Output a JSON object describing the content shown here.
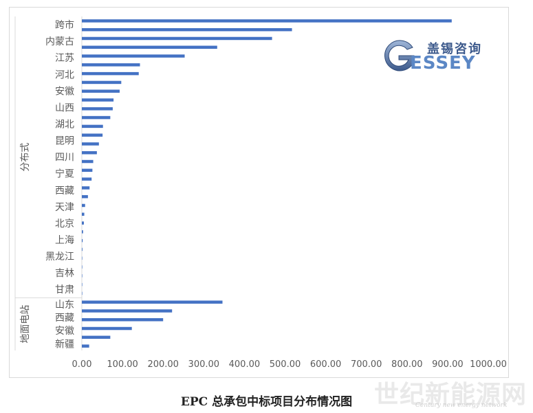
{
  "chart_data": {
    "type": "bar",
    "orientation": "horizontal",
    "title": "EPC 总承包中标项目分布情况图",
    "xlim": [
      0,
      1000
    ],
    "x_ticks": [
      "0.00",
      "100.00",
      "200.00",
      "300.00",
      "400.00",
      "500.00",
      "600.00",
      "700.00",
      "800.00",
      "900.00",
      "1000.00"
    ],
    "groups": [
      {
        "name": "分布式",
        "labeled_categories": [
          "跨市",
          "内蒙古",
          "江苏",
          "河北",
          "安徽",
          "山西",
          "湖北",
          "昆明",
          "四川",
          "宁夏",
          "西藏",
          "天津",
          "北京",
          "上海",
          "黑龙江",
          "吉林",
          "甘肃"
        ],
        "values": [
          910,
          517,
          468,
          333,
          253,
          143,
          140,
          97,
          93,
          78,
          76,
          70,
          52,
          51,
          42,
          37,
          28,
          26,
          24,
          19,
          15,
          8,
          6,
          5,
          3,
          2,
          1.5,
          1,
          0.8,
          0.5,
          0.4,
          0.3
        ]
      },
      {
        "name": "地面电站",
        "labeled_categories": [
          "山东",
          "西藏",
          "安徽",
          "新疆"
        ],
        "values": [
          346,
          222,
          200,
          123,
          70,
          18
        ]
      }
    ],
    "bar_color": "#4472c4"
  },
  "logo": {
    "letter": "G",
    "name_cn": "盖锡咨询",
    "name_en": "ESSEY"
  },
  "watermark": {
    "name_cn": "世纪新能源网",
    "name_en": "Century new energy network"
  }
}
